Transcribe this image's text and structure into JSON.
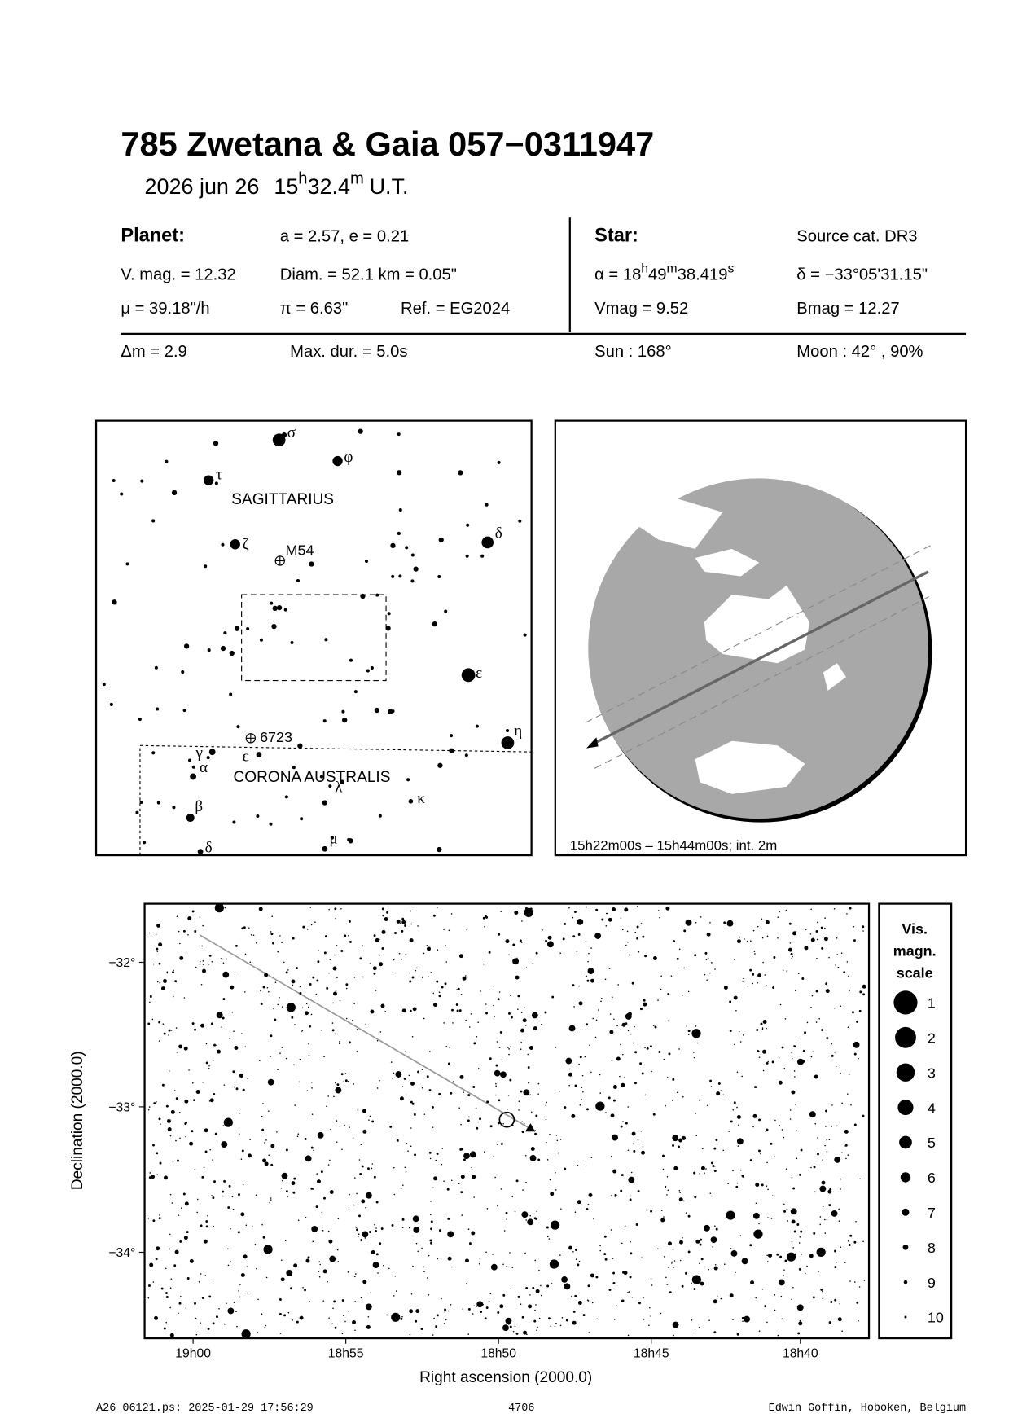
{
  "header": {
    "title": "785 Zwetana  &  Gaia 057−0311947",
    "date": "2026 jun 26",
    "time": [
      "15",
      "h",
      "32.4",
      "m"
    ],
    "timescale": "U.T."
  },
  "planet": {
    "heading": "Planet:",
    "orbit": "a = 2.57, e = 0.21",
    "vmag": "V. mag. = 12.32",
    "diameter": "Diam. = 52.1 km = 0.05\"",
    "motion": "μ =  39.18\"/h",
    "parallax": "π =  6.63\"",
    "reference": "Ref. = EG2024"
  },
  "star": {
    "heading": "Star:",
    "source": "Source cat.  DR3",
    "ra": [
      "α = 18",
      "h",
      "49",
      "m",
      "38.419",
      "s"
    ],
    "dec": "δ = −33°05'31.15\"",
    "vmag": "Vmag =  9.52",
    "bmag": "Bmag = 12.27"
  },
  "event": {
    "delta_mag": "Δm = 2.9",
    "max_duration": "Max. dur. = 5.0s",
    "sun": "Sun : 168°",
    "moon": "Moon :  42° , 90%"
  },
  "finder": {
    "constellations": [
      "SAGITTARIUS",
      "CORONA AUSTRALIS"
    ],
    "objects": [
      "M54",
      "6723"
    ],
    "stars": [
      "σ",
      "φ",
      "τ",
      "ζ",
      "δ",
      "ε",
      "η",
      "γ",
      "α",
      "ε",
      "λ",
      "κ",
      "β",
      "μ",
      "δ"
    ]
  },
  "globe": {
    "caption": "15h22m00s – 15h44m00s; int.  2m"
  },
  "sky_chart": {
    "xlabel": "Right ascension (2000.0)",
    "ylabel": "Declination (2000.0)",
    "xticks": [
      "19h00",
      "18h55",
      "18h50",
      "18h45",
      "18h40"
    ],
    "yticks": [
      "−32°",
      "−33°",
      "−34°"
    ]
  },
  "scale": {
    "title": [
      "Vis.",
      "magn.",
      "scale"
    ],
    "magnitudes": [
      1,
      2,
      3,
      4,
      5,
      6,
      7,
      8,
      9,
      10
    ]
  },
  "footer": {
    "file": "A26_06121.ps: 2025-01-29 17:56:29",
    "number": "4706",
    "author": "Edwin Goffin, Hoboken, Belgium"
  }
}
